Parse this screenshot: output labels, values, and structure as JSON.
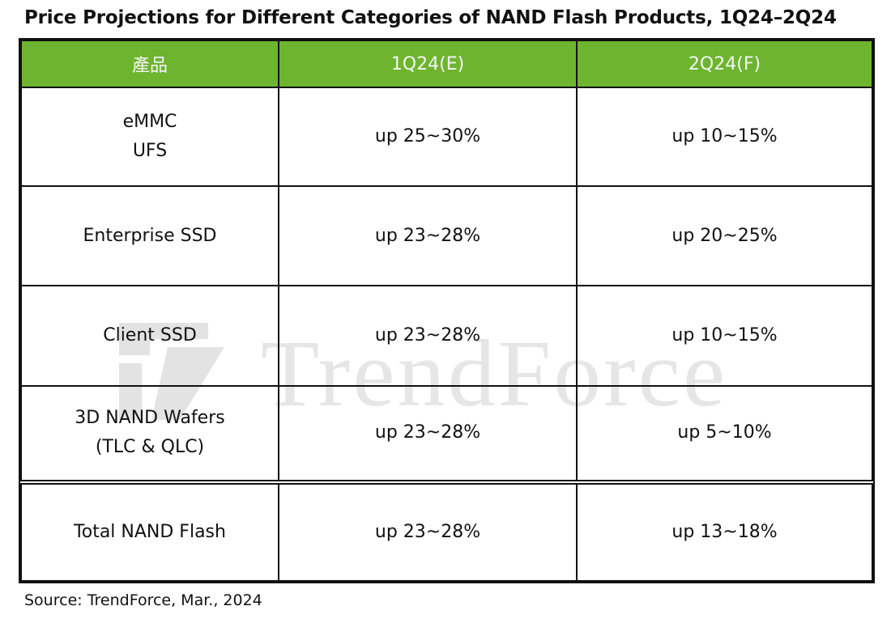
{
  "title": "Price Projections for Different Categories of NAND Flash Products, 1Q24–2Q24",
  "table": {
    "headers": [
      "產品",
      "1Q24(E)",
      "2Q24(F)"
    ],
    "rows": [
      {
        "product": [
          "eMMC",
          "UFS"
        ],
        "q1": "up 25~30%",
        "q2": "up 10~15%"
      },
      {
        "product": [
          "Enterprise SSD"
        ],
        "q1": "up 23~28%",
        "q2": "up 20~25%"
      },
      {
        "product": [
          "Client SSD"
        ],
        "q1": "up 23~28%",
        "q2": "up 10~15%"
      },
      {
        "product": [
          "3D NAND Wafers",
          "(TLC & QLC)"
        ],
        "q1": "up 23~28%",
        "q2": "up 5~10%"
      },
      {
        "product": [
          "Total NAND Flash"
        ],
        "q1": "up 23~28%",
        "q2": "up 13~18%"
      }
    ]
  },
  "watermark": {
    "text": "TrendForce"
  },
  "source": "Source: TrendForce, Mar., 2024",
  "colors": {
    "header_bg": "#6eb52f",
    "header_text": "#f4f4f4",
    "border": "#111111",
    "watermark": "#e6e6e6"
  }
}
